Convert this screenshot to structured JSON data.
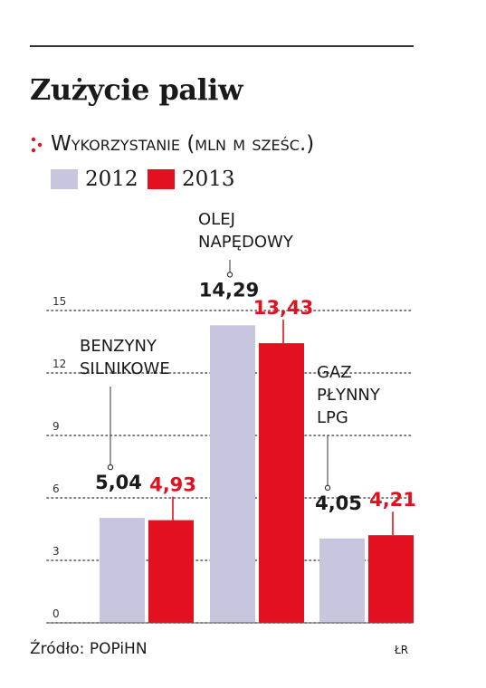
{
  "header": {
    "title": "Zużycie paliw",
    "subtitle": "Wykorzystanie (mln m sześc.)"
  },
  "legend": [
    {
      "label": "2012",
      "color": "#c8c6df"
    },
    {
      "label": "2013",
      "color": "#e3101f"
    }
  ],
  "footer": {
    "source": "Źródło: POPiHN",
    "credit": "ŁR"
  },
  "chart_data": {
    "type": "bar",
    "title": "Zużycie paliw",
    "ylabel": "Wykorzystanie (mln m sześc.)",
    "ylim": [
      0,
      15
    ],
    "yticks": [
      0,
      3,
      6,
      9,
      12,
      15
    ],
    "grid": true,
    "legend_position": "top-left",
    "categories": [
      {
        "lines": [
          "BENZYNY",
          "SILNIKOWE"
        ]
      },
      {
        "lines": [
          "OLEJ",
          "NAPĘDOWY"
        ]
      },
      {
        "lines": [
          "GAZ",
          "PŁYNNY",
          "LPG"
        ]
      }
    ],
    "series": [
      {
        "name": "2012",
        "color": "#c8c6df",
        "label_color": "#1a1a1a",
        "values": [
          5.04,
          14.29,
          4.05
        ],
        "labels": [
          "5,04",
          "14,29",
          "4,05"
        ]
      },
      {
        "name": "2013",
        "color": "#e3101f",
        "label_color": "#e3101f",
        "values": [
          4.93,
          13.43,
          4.21
        ],
        "labels": [
          "4,93",
          "13,43",
          "4,21"
        ]
      }
    ]
  }
}
